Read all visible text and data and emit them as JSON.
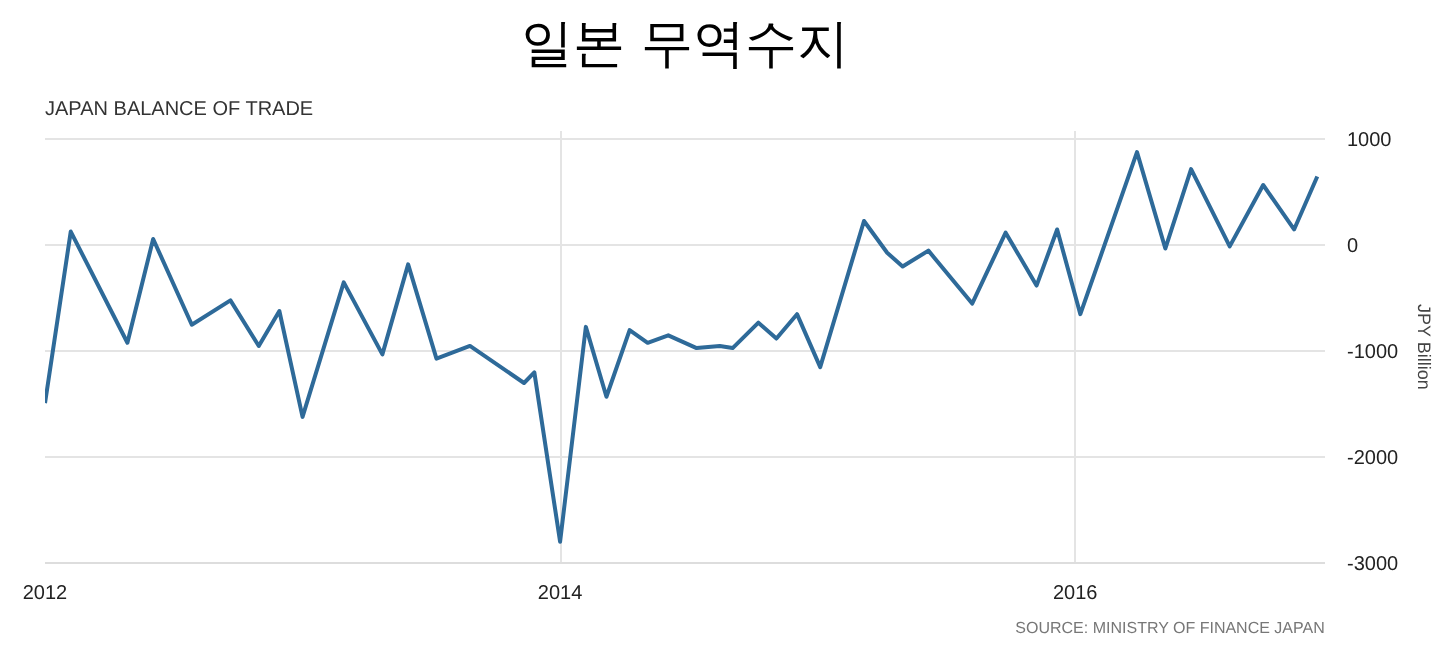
{
  "chart_data": {
    "type": "line",
    "title": "일본 무역수지",
    "subtitle": "JAPAN BALANCE OF TRADE",
    "ylabel": "JPY Billion",
    "annotations": [
      "SOURCE: MINISTRY OF FINANCE JAPAN"
    ],
    "x": [
      2012.0,
      2012.1,
      2012.32,
      2012.42,
      2012.57,
      2012.72,
      2012.83,
      2012.91,
      2013.0,
      2013.16,
      2013.31,
      2013.41,
      2013.52,
      2013.65,
      2013.86,
      2013.9,
      2014.0,
      2014.1,
      2014.18,
      2014.27,
      2014.34,
      2014.42,
      2014.53,
      2014.62,
      2014.67,
      2014.77,
      2014.84,
      2014.92,
      2015.01,
      2015.18,
      2015.27,
      2015.33,
      2015.43,
      2015.6,
      2015.73,
      2015.85,
      2015.93,
      2016.02,
      2016.24,
      2016.35,
      2016.45,
      2016.6,
      2016.73,
      2016.85,
      2016.94
    ],
    "series": [
      {
        "color": "#2e6a99",
        "values": [
          -1490,
          130,
          -920,
          60,
          -750,
          -520,
          -950,
          -620,
          -1620,
          -350,
          -1030,
          -180,
          -1070,
          -950,
          -1300,
          -1200,
          -2800,
          -770,
          -1430,
          -800,
          -920,
          -850,
          -970,
          -950,
          -970,
          -730,
          -880,
          -650,
          -1150,
          230,
          -70,
          -200,
          -50,
          -550,
          120,
          -380,
          150,
          -650,
          880,
          -30,
          720,
          -10,
          570,
          150,
          650
        ]
      }
    ],
    "xlim": [
      2012,
      2016.97
    ],
    "ylim": [
      -3000,
      1080
    ],
    "xticks": [
      2012,
      2014,
      2016
    ],
    "yticks": [
      -3000,
      -2000,
      -1000,
      0,
      1000
    ],
    "grid": true,
    "marker": "none",
    "line_style": "solid"
  }
}
